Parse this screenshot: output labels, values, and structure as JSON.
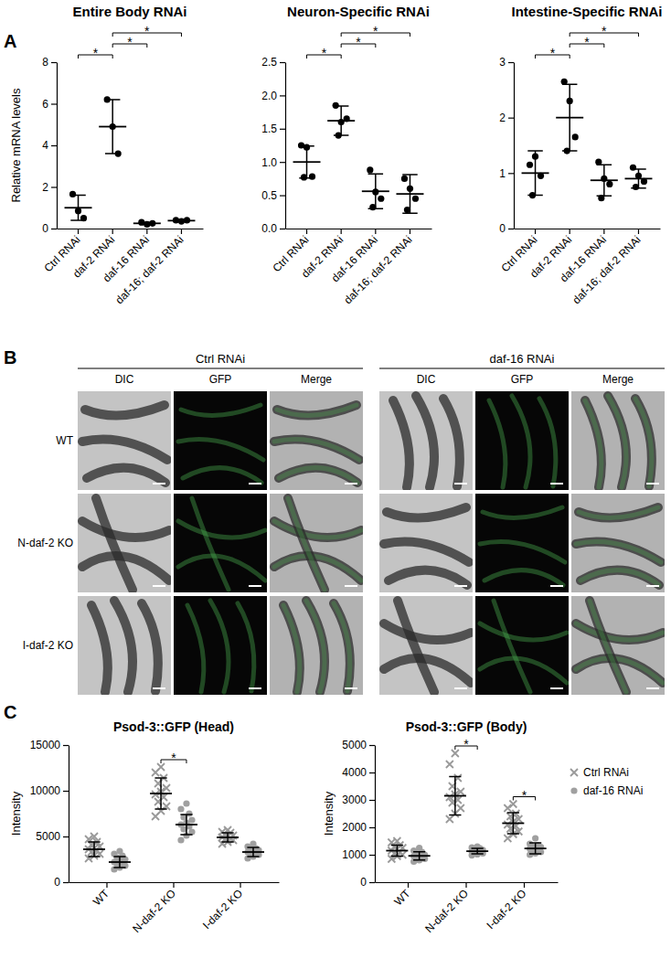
{
  "panels": [
    "A",
    "B",
    "C"
  ],
  "chart_data": [
    {
      "type": "scatter",
      "title": "Entire Body RNAi",
      "y_label": "Relative mRNA levels",
      "categories": [
        "Ctrl RNAi",
        "daf-2 RNAi",
        "daf-16 RNAi",
        "daf-16; daf-2 RNAi"
      ],
      "points": [
        [
          1.65,
          0.85,
          0.5
        ],
        [
          6.2,
          4.9,
          3.6
        ],
        [
          0.3,
          0.2,
          0.25
        ],
        [
          0.4,
          0.35,
          0.4
        ]
      ],
      "means": [
        1.0,
        4.9,
        0.25,
        0.38
      ],
      "errors": [
        0.6,
        1.3,
        0.05,
        0.03
      ],
      "color": "#000000",
      "marker": "circle",
      "ylim": [
        0,
        8
      ],
      "yticks": [
        0,
        2,
        4,
        6,
        8
      ],
      "comparisons": [
        {
          "pair": [
            0,
            1
          ],
          "label": "*"
        },
        {
          "pair": [
            1,
            2
          ],
          "label": "*"
        },
        {
          "pair": [
            1,
            3
          ],
          "label": "*"
        }
      ]
    },
    {
      "type": "scatter",
      "title": "Neuron-Specific RNAi",
      "categories": [
        "Ctrl RNAi",
        "daf-2 RNAi",
        "daf-16 RNAi",
        "daf-16; daf-2 RNAi"
      ],
      "points": [
        [
          1.25,
          1.22,
          0.78,
          0.77
        ],
        [
          1.85,
          1.6,
          1.65,
          1.4
        ],
        [
          0.88,
          0.55,
          0.45,
          0.32
        ],
        [
          0.75,
          0.6,
          0.45,
          0.28
        ]
      ],
      "means": [
        1.0,
        1.62,
        0.56,
        0.52
      ],
      "errors": [
        0.24,
        0.22,
        0.26,
        0.29
      ],
      "color": "#000000",
      "marker": "circle",
      "ylim": [
        0,
        2.5
      ],
      "yticks": [
        {
          "value": 0,
          "label": "0.0"
        },
        {
          "value": 0.5,
          "label": "0.5"
        },
        {
          "value": 1,
          "label": "1.0"
        },
        {
          "value": 1.5,
          "label": "1.5"
        },
        {
          "value": 2,
          "label": "2.0"
        },
        {
          "value": 2.5,
          "label": "2.5"
        }
      ],
      "comparisons": [
        {
          "pair": [
            0,
            1
          ],
          "label": "*"
        },
        {
          "pair": [
            1,
            2
          ],
          "label": "*"
        },
        {
          "pair": [
            1,
            3
          ],
          "label": "*"
        }
      ]
    },
    {
      "type": "scatter",
      "title": "Intestine-Specific RNAi",
      "categories": [
        "Ctrl RNAi",
        "daf-2 RNAi",
        "daf-16 RNAi",
        "daf-16; daf-2 RNAi"
      ],
      "points": [
        [
          1.15,
          1.3,
          0.95,
          0.6
        ],
        [
          2.65,
          2.3,
          1.65,
          1.4
        ],
        [
          1.2,
          0.9,
          0.8,
          0.55
        ],
        [
          1.1,
          0.95,
          0.85,
          0.75
        ]
      ],
      "means": [
        1.0,
        2.0,
        0.87,
        0.9
      ],
      "errors": [
        0.4,
        0.6,
        0.28,
        0.17
      ],
      "color": "#000000",
      "marker": "circle",
      "ylim": [
        0,
        3
      ],
      "yticks": [
        0,
        1,
        2,
        3
      ],
      "comparisons": [
        {
          "pair": [
            0,
            1
          ],
          "label": "*"
        },
        {
          "pair": [
            1,
            2
          ],
          "label": "*"
        },
        {
          "pair": [
            1,
            3
          ],
          "label": "*"
        }
      ]
    },
    {
      "type": "scatter",
      "title": "Psod-3::GFP (Head)",
      "y_label": "Intensity",
      "categories": [
        "WT",
        "N-daf-2 KO",
        "I-daf-2 KO"
      ],
      "series": [
        {
          "name": "Ctrl RNAi",
          "color": "#999999",
          "marker": "x",
          "points": [
            [
              2600,
              2900,
              3100,
              3300,
              3500,
              3600,
              3700,
              3900,
              4100,
              4400,
              4700,
              5000
            ],
            [
              7200,
              7800,
              8300,
              8800,
              9300,
              9600,
              9900,
              10300,
              10800,
              11400,
              12000,
              12600
            ],
            [
              4200,
              4400,
              4600,
              4700,
              4800,
              4900,
              5000,
              5100,
              5200,
              5400,
              5500,
              5700
            ]
          ],
          "means": [
            3600,
            9700,
            4900
          ],
          "errors": [
            800,
            1700,
            500
          ]
        },
        {
          "name": "daf-16 RNAi",
          "color": "#a0a0a0",
          "marker": "circle",
          "points": [
            [
              1400,
              1600,
              1800,
              2000,
              2100,
              2200,
              2300,
              2500,
              2700,
              2900,
              3100,
              3400
            ],
            [
              4600,
              5100,
              5500,
              5800,
              6100,
              6300,
              6500,
              6800,
              7100,
              7500,
              8000,
              8600
            ],
            [
              2600,
              2800,
              3000,
              3100,
              3200,
              3300,
              3400,
              3500,
              3600,
              3700,
              3900,
              4200
            ]
          ],
          "means": [
            2200,
            6300,
            3300
          ],
          "errors": [
            600,
            1100,
            500
          ]
        }
      ],
      "ylim": [
        0,
        15000
      ],
      "yticks": [
        0,
        5000,
        10000,
        15000
      ],
      "comparisons": [
        {
          "category": 1,
          "label": "*"
        }
      ]
    },
    {
      "type": "scatter",
      "title": "Psod-3::GFP (Body)",
      "y_label": "Intensity",
      "categories": [
        "WT",
        "N-daf-2 KO",
        "I-daf-2 KO"
      ],
      "series": [
        {
          "name": "Ctrl RNAi",
          "color": "#999999",
          "marker": "x",
          "points": [
            [
              850,
              950,
              1000,
              1050,
              1100,
              1150,
              1200,
              1250,
              1300,
              1350,
              1450,
              1500
            ],
            [
              2300,
              2500,
              2700,
              2900,
              3000,
              3100,
              3200,
              3300,
              3500,
              3800,
              4300,
              4700
            ],
            [
              1600,
              1750,
              1850,
              1950,
              2050,
              2100,
              2200,
              2300,
              2400,
              2500,
              2700,
              2850
            ]
          ],
          "means": [
            1150,
            3150,
            2150
          ],
          "errors": [
            200,
            700,
            380
          ]
        },
        {
          "name": "daf-16 RNAi",
          "color": "#a0a0a0",
          "marker": "circle",
          "points": [
            [
              750,
              800,
              850,
              900,
              920,
              950,
              980,
              1000,
              1050,
              1100,
              1150,
              1250
            ],
            [
              980,
              1020,
              1050,
              1080,
              1100,
              1120,
              1150,
              1170,
              1200,
              1230,
              1260,
              1300
            ],
            [
              1000,
              1050,
              1100,
              1150,
              1200,
              1220,
              1250,
              1280,
              1300,
              1350,
              1400,
              1600
            ]
          ],
          "means": [
            960,
            1130,
            1230
          ],
          "errors": [
            150,
            100,
            200
          ]
        }
      ],
      "ylim": [
        0,
        5000
      ],
      "yticks": [
        0,
        1000,
        2000,
        3000,
        4000,
        5000
      ],
      "comparisons": [
        {
          "category": 1,
          "label": "*"
        },
        {
          "category": 2,
          "label": "*"
        }
      ],
      "legend": "right"
    }
  ],
  "image_grid": {
    "conditions": [
      "Ctrl RNAi",
      "daf-16 RNAi"
    ],
    "channels": [
      "DIC",
      "GFP",
      "Merge"
    ],
    "rows": [
      "WT",
      "N-daf-2 KO",
      "I-daf-2 KO"
    ]
  }
}
